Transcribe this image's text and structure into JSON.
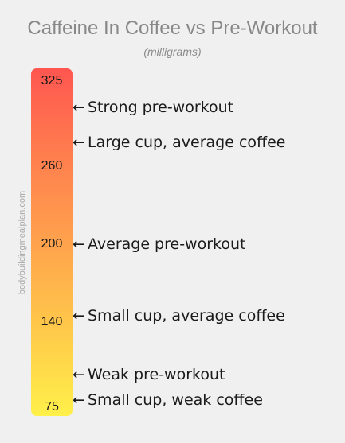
{
  "title": "Caffeine In Coffee vs Pre-Workout",
  "subtitle": "(milligrams)",
  "watermark": "bodybuildingmealplan.com",
  "arrow_glyph": "←",
  "colors": {
    "background": "#f0f0f0",
    "bar_top": "#ff5650",
    "bar_bottom": "#fff04a",
    "title": "#888888"
  },
  "chart_data": {
    "type": "bar",
    "title": "Caffeine In Coffee vs Pre-Workout",
    "subtitle": "(milligrams)",
    "ylim": [
      68,
      335
    ],
    "tick_labels": [
      "325",
      "260",
      "200",
      "140",
      "75"
    ],
    "tick_values": [
      325,
      260,
      200,
      140,
      75
    ],
    "annotations": [
      {
        "label": "Strong pre-workout",
        "value": 305
      },
      {
        "label": "Large cup, average coffee",
        "value": 278
      },
      {
        "label": "Average pre-workout",
        "value": 200
      },
      {
        "label": "Small cup, average coffee",
        "value": 145
      },
      {
        "label": "Weak pre-workout",
        "value": 100
      },
      {
        "label": "Small cup, weak coffee",
        "value": 80
      }
    ]
  }
}
